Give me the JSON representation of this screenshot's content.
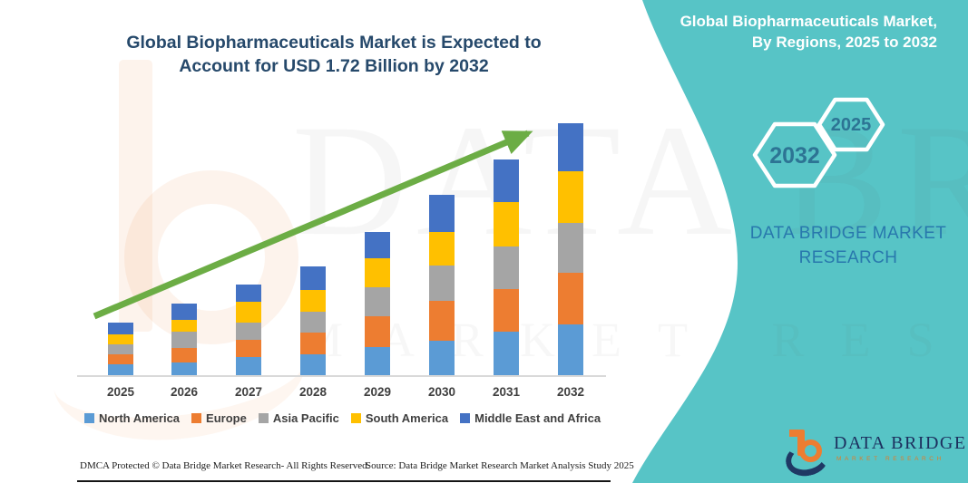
{
  "title": "Global Biopharmaceuticals Market is Expected to Account for USD 1.72 Billion by 2032",
  "side_panel": {
    "background_color": "#57c4c6",
    "heading_line1": "Global Biopharmaceuticals Market,",
    "heading_line2": "By Regions, 2025 to 2032",
    "hex_back_label": "2032",
    "hex_front_label": "2025",
    "brand_line1": "DATA BRIDGE MARKET",
    "brand_line2": "RESEARCH"
  },
  "chart_data": {
    "type": "bar",
    "stacked": true,
    "unit": "USD Billion",
    "title": "Global Biopharmaceuticals Market is Expected to Account for USD 1.72 Billion by 2032",
    "xlabel": "",
    "ylabel": "",
    "grid": false,
    "legend_position": "bottom",
    "categories": [
      "2025",
      "2026",
      "2027",
      "2028",
      "2029",
      "2030",
      "2031",
      "2032"
    ],
    "series": [
      {
        "name": "North America",
        "color": "#5B9BD5",
        "values": [
          0.08,
          0.09,
          0.13,
          0.15,
          0.2,
          0.24,
          0.3,
          0.35
        ]
      },
      {
        "name": "Europe",
        "color": "#ED7D31",
        "values": [
          0.07,
          0.1,
          0.12,
          0.15,
          0.21,
          0.27,
          0.29,
          0.35
        ]
      },
      {
        "name": "Asia Pacific",
        "color": "#A5A5A5",
        "values": [
          0.07,
          0.11,
          0.12,
          0.14,
          0.2,
          0.24,
          0.29,
          0.34
        ]
      },
      {
        "name": "South America",
        "color": "#FFC000",
        "values": [
          0.07,
          0.08,
          0.14,
          0.15,
          0.2,
          0.23,
          0.3,
          0.35
        ]
      },
      {
        "name": "Middle East and Africa",
        "color": "#4472C4",
        "values": [
          0.08,
          0.11,
          0.12,
          0.16,
          0.18,
          0.25,
          0.29,
          0.33
        ]
      }
    ],
    "totals": [
      0.37,
      0.49,
      0.63,
      0.75,
      0.99,
      1.23,
      1.47,
      1.72
    ],
    "annotations": [
      "upward growth trend arrow"
    ],
    "trend_arrow_color": "#6CAD45"
  },
  "watermark": {
    "line1": "DATA BRIDGE",
    "line2": "MARKET RESEARCH"
  },
  "footer": {
    "left": "DMCA Protected © Data Bridge Market Research-  All Rights Reserved.",
    "right": "Source: Data Bridge Market Research  Market Analysis Study 2025"
  },
  "logo": {
    "name": "DATA BRIDGE",
    "subtitle": "MARKET RESEARCH"
  }
}
